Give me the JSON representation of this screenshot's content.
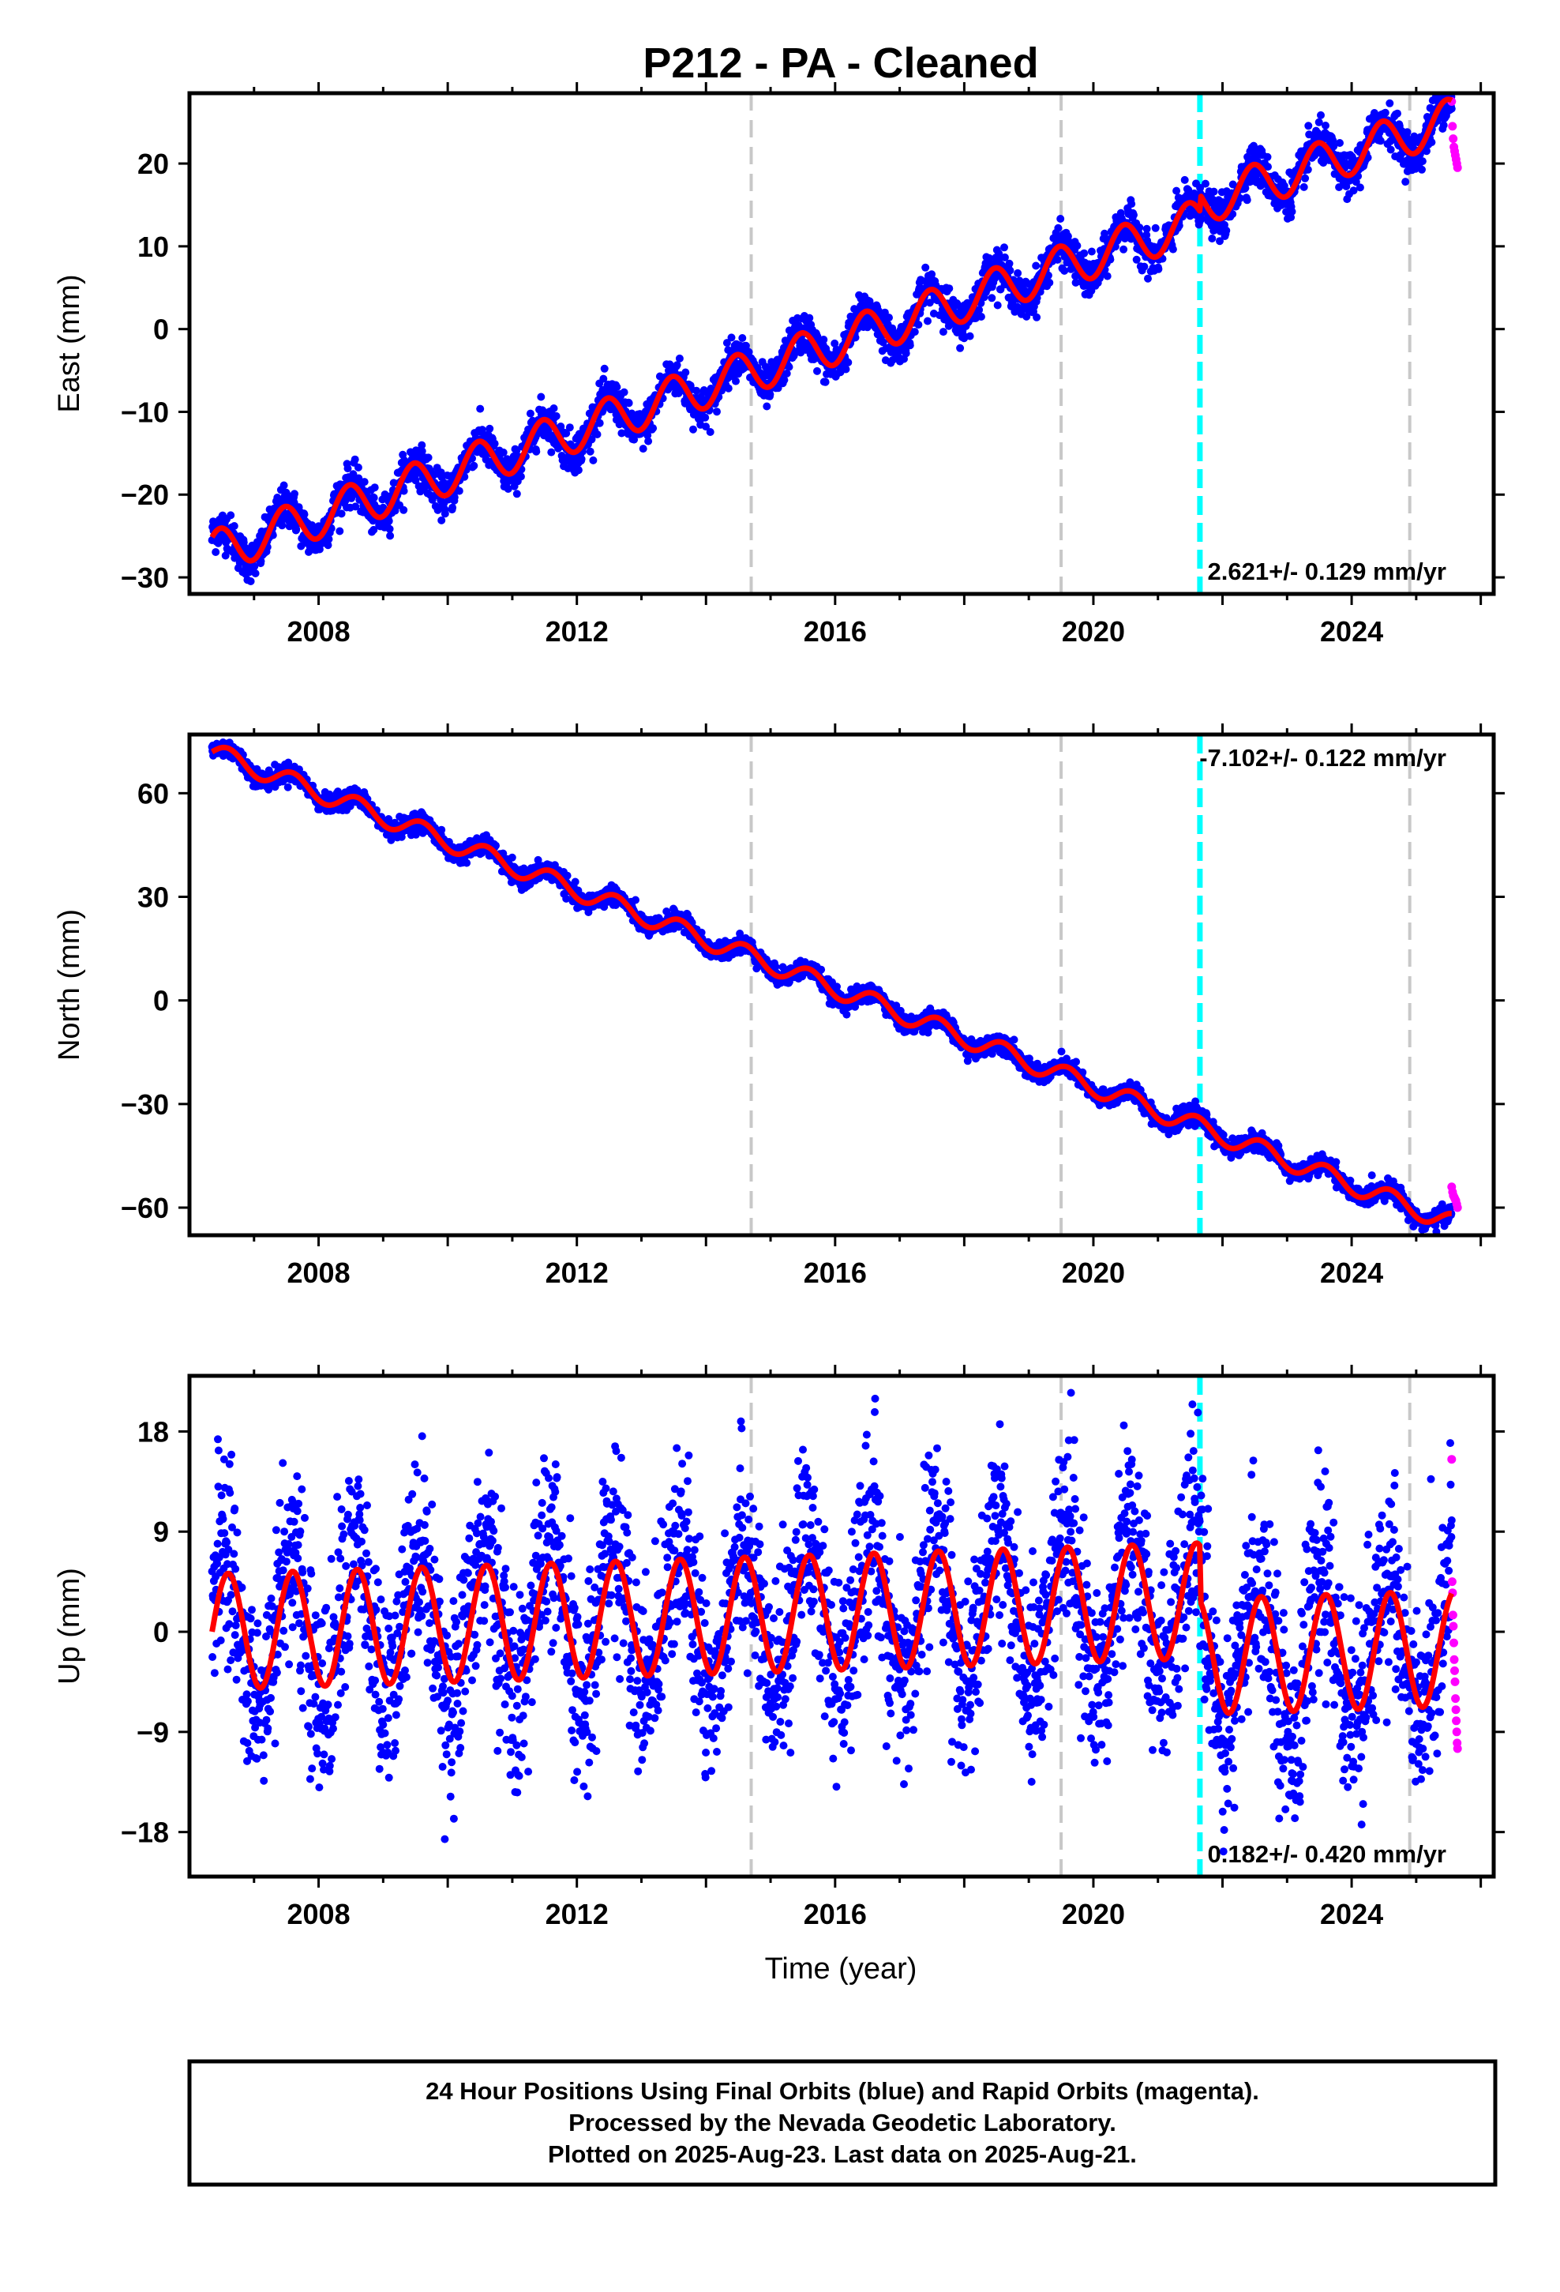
{
  "chart_data": {
    "title": "P212  - PA - Cleaned",
    "type": "scatter",
    "xlabel": "Time (year)",
    "xlim": [
      2006.0,
      2026.2
    ],
    "x_ticks": [
      "2008",
      "2012",
      "2016",
      "2020",
      "2024"
    ],
    "vlines_gray": [
      2014.7,
      2019.5,
      2024.9
    ],
    "vline_cyan": 2021.65,
    "colors": {
      "final": "#0000ff",
      "rapid": "#ff00ff",
      "model": "#ff0000",
      "vgray": "#c8c8c8",
      "vcyan": "#00ffff"
    },
    "panels": [
      {
        "component": "East",
        "ylabel": "East (mm)",
        "ylim": [
          -32,
          28.5
        ],
        "yticks": [
          "20",
          "10",
          "0",
          "-10",
          "-20",
          "-30"
        ],
        "rate_label": "2.621+/- 0.129 mm/yr",
        "rate_pos": "bottom-right",
        "model": {
          "t0": 2006.35,
          "y0": -27.0,
          "rate": 2.621,
          "annual_amp": 2.6,
          "annual_phase": 0.8,
          "offsets": [
            {
              "year": 2021.65,
              "dy": 2.0
            }
          ]
        },
        "series": [
          {
            "name": "Final Orbits",
            "color": "blue",
            "x_range": [
              2006.35,
              2025.55
            ],
            "scatter_sd": 1.2,
            "count": 3400
          },
          {
            "name": "Rapid Orbits",
            "color": "magenta",
            "x_range": [
              2025.55,
              2025.64
            ],
            "values": [
              27.5,
              24.5,
              23.0,
              22.0,
              21.5,
              21.0,
              20.5,
              20.0,
              19.5
            ]
          }
        ]
      },
      {
        "component": "North",
        "ylabel": "North (mm)",
        "ylim": [
          -68,
          77
        ],
        "yticks": [
          "60",
          "30",
          "0",
          "-30",
          "-60"
        ],
        "rate_label": "-7.102+/- 0.122 mm/yr",
        "rate_pos": "top-right",
        "model": {
          "t0": 2006.35,
          "y0": 72.0,
          "rate": -7.102,
          "annual_amp": 2.8,
          "annual_phase": 0.0,
          "offsets": []
        },
        "series": [
          {
            "name": "Final Orbits",
            "color": "blue",
            "x_range": [
              2006.35,
              2025.55
            ],
            "scatter_sd": 1.3,
            "count": 3400
          },
          {
            "name": "Rapid Orbits",
            "color": "magenta",
            "x_range": [
              2025.55,
              2025.64
            ],
            "values": [
              -54.0,
              -55.5,
              -56.5,
              -57.0,
              -57.5,
              -58.0,
              -59.0,
              -60.0
            ]
          }
        ]
      },
      {
        "component": "Up",
        "ylabel": "Up (mm)",
        "ylim": [
          -22,
          23
        ],
        "yticks": [
          "18",
          "9",
          "0",
          "-9",
          "-18"
        ],
        "rate_label": "0.182+/- 0.420 mm/yr",
        "rate_pos": "bottom-right",
        "model": {
          "t0": 2006.35,
          "y0": 0.0,
          "rate": 0.182,
          "annual_amp": 5.2,
          "annual_phase": 0.0,
          "offsets": [
            {
              "year": 2021.65,
              "dy": -5.0
            }
          ]
        },
        "series": [
          {
            "name": "Final Orbits",
            "color": "blue",
            "x_range": [
              2006.35,
              2025.55
            ],
            "scatter_sd": 4.3,
            "count": 3400
          },
          {
            "name": "Rapid Orbits",
            "color": "magenta",
            "x_range": [
              2025.55,
              2025.64
            ],
            "values": [
              15.5,
              4.5,
              3.5,
              1.5,
              0.5,
              -1.0,
              -2.5,
              -3.5,
              -4.5,
              -6.0,
              -7.0,
              -8.0,
              -9.0,
              -10.0,
              -10.5
            ]
          }
        ]
      }
    ]
  },
  "caption": {
    "line1": "24 Hour Positions Using Final Orbits (blue) and Rapid Orbits (magenta).",
    "line2": "Processed by the Nevada Geodetic Laboratory.",
    "line3": "Plotted on 2025-Aug-23. Last data on 2025-Aug-21."
  }
}
